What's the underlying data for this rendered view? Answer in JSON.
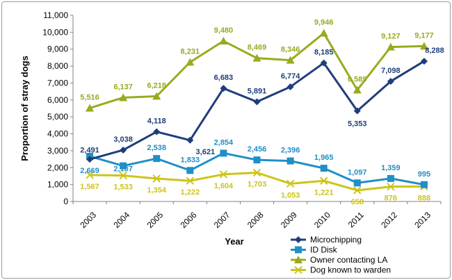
{
  "chart_data": {
    "type": "line",
    "title": "",
    "xlabel": "Year",
    "ylabel": "Proportion of stray dogs",
    "ylim": [
      0,
      11000
    ],
    "ytick_step": 1000,
    "categories": [
      "2003",
      "2004",
      "2005",
      "2006",
      "2007",
      "2008",
      "2009",
      "2010",
      "2011",
      "2012",
      "2013"
    ],
    "legend_position": "bottom-right",
    "series": [
      {
        "name": "Microchipping",
        "color": "#1f3d7a",
        "marker": "diamond",
        "values": [
          2491,
          3038,
          4118,
          3621,
          6683,
          5891,
          6774,
          8185,
          5353,
          7098,
          8288
        ],
        "labels": [
          "2,491",
          "3,038",
          "4,118",
          "3,621",
          "6,683",
          "5,891",
          "6,774",
          "8,185",
          "5,353",
          "7,098",
          "8,288"
        ]
      },
      {
        "name": "ID Disk",
        "color": "#1f8fc8",
        "marker": "square",
        "values": [
          2669,
          2107,
          2538,
          1833,
          2854,
          2456,
          2396,
          1965,
          1097,
          1359,
          995
        ],
        "labels": [
          "2,669",
          "2,107",
          "2,538",
          "1,833",
          "2,854",
          "2,456",
          "2,396",
          "1,965",
          "1,097",
          "1,359",
          "995"
        ]
      },
      {
        "name": "Owner contacting LA",
        "color": "#9aaa1e",
        "marker": "triangle",
        "values": [
          5516,
          6137,
          6218,
          8231,
          9480,
          8469,
          8346,
          9946,
          6589,
          9127,
          9177
        ],
        "labels": [
          "5,516",
          "6,137",
          "6,218",
          "8,231",
          "9,480",
          "8,469",
          "8,346",
          "9,946",
          "6,589",
          "9,127",
          "9,177"
        ]
      },
      {
        "name": "Dog known to warden",
        "color": "#cdc41a",
        "marker": "x",
        "values": [
          1567,
          1533,
          1354,
          1222,
          1604,
          1703,
          1053,
          1221,
          658,
          876,
          888
        ],
        "labels": [
          "1,567",
          "1,533",
          "1,354",
          "1,222",
          "1,604",
          "1,703",
          "1,053",
          "1,221",
          "658",
          "876",
          "888"
        ]
      }
    ]
  }
}
